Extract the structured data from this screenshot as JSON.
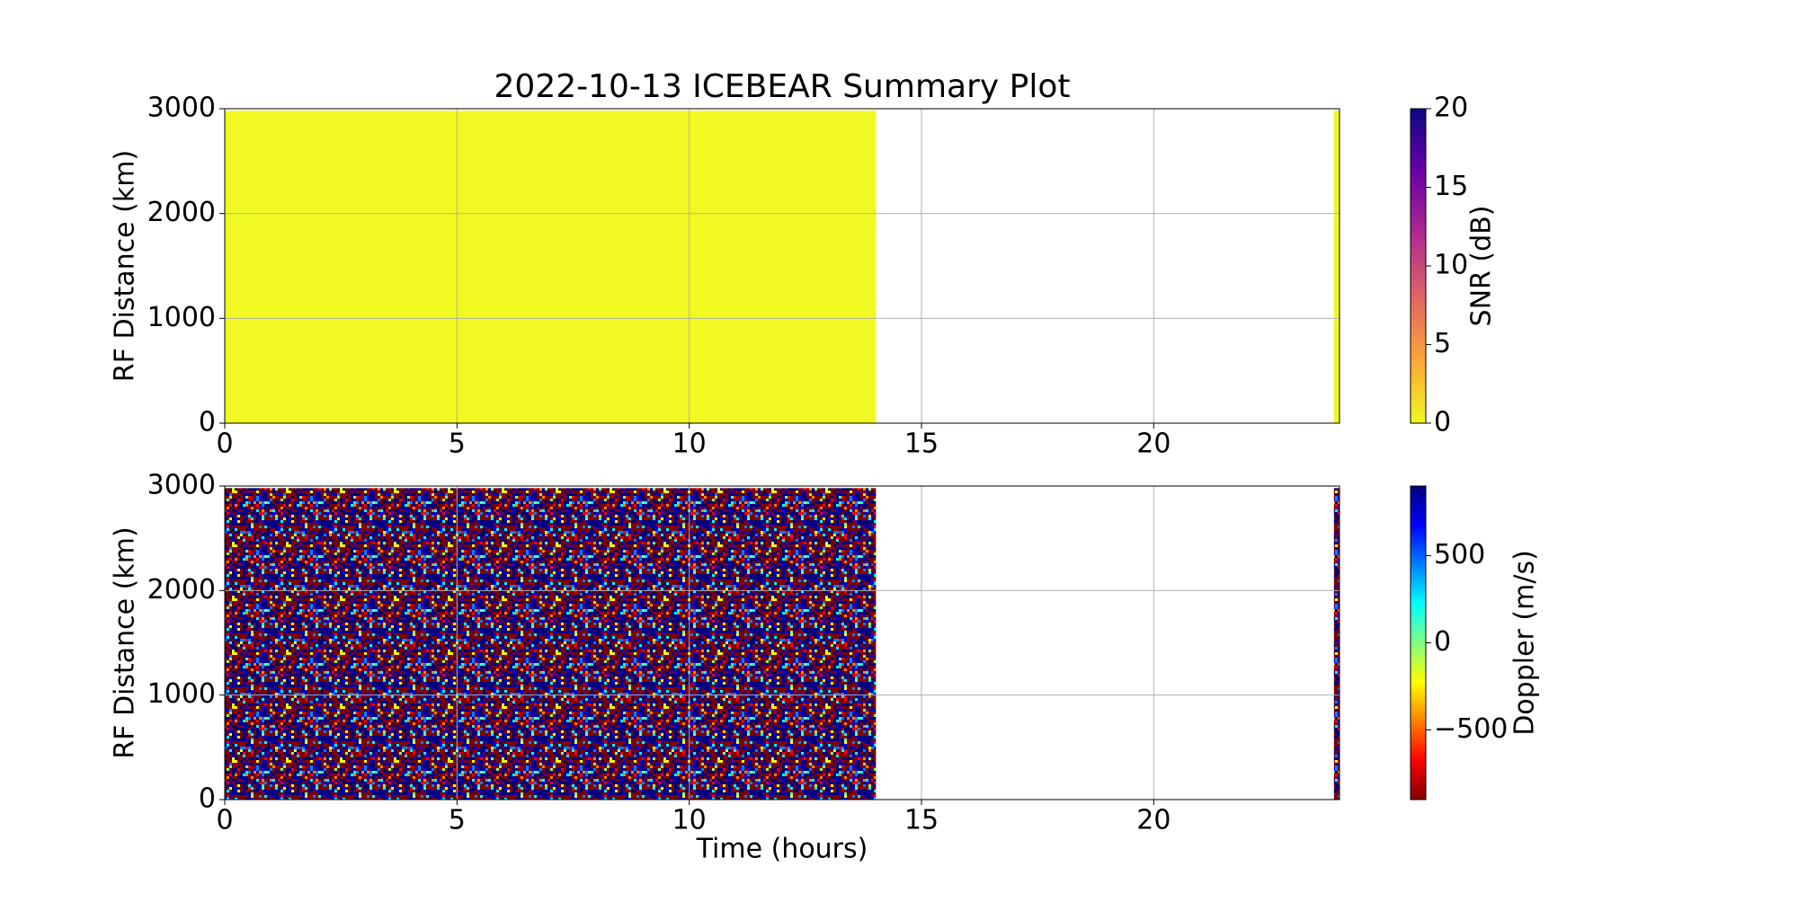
{
  "chart_data": [
    {
      "type": "heatmap",
      "title": "2022-10-13 ICEBEAR Summary Plot",
      "ylabel": "RF Distance (km)",
      "xlim": [
        0,
        24
      ],
      "xticks": [
        0,
        5,
        10,
        15,
        20
      ],
      "ylim": [
        0,
        3000
      ],
      "yticks": [
        0,
        1000,
        2000,
        3000
      ],
      "grid": true,
      "fill": "uniform",
      "value": 0,
      "spans": [
        {
          "x": [
            0,
            14.02
          ],
          "y": [
            0,
            2980
          ]
        },
        {
          "x": [
            23.88,
            24
          ],
          "y": [
            0,
            2980
          ]
        }
      ],
      "colorbar": {
        "label": "SNR (dB)",
        "lim": [
          0,
          20
        ],
        "ticks": [
          0,
          5,
          10,
          15,
          20
        ],
        "colors": [
          "#f0f921",
          "#fca636",
          "#e16462",
          "#b12a90",
          "#6a00a8",
          "#0d0887"
        ]
      }
    },
    {
      "type": "heatmap",
      "ylabel": "RF Distance (km)",
      "xlabel": "Time (hours)",
      "xlim": [
        0,
        24
      ],
      "xticks": [
        0,
        5,
        10,
        15,
        20
      ],
      "ylim": [
        0,
        3000
      ],
      "yticks": [
        0,
        1000,
        2000,
        3000
      ],
      "grid": true,
      "fill": "noise",
      "spans": [
        {
          "x": [
            0,
            14.02
          ],
          "y": [
            0,
            2980
          ]
        },
        {
          "x": [
            23.88,
            24
          ],
          "y": [
            0,
            2980
          ]
        }
      ],
      "colorbar": {
        "label": "Doppler (m/s)",
        "lim": [
          -900,
          900
        ],
        "ticks": [
          {
            "value": -500,
            "label": "−500"
          },
          0,
          500
        ],
        "colors": [
          "#800000",
          "#ff0000",
          "#ff8000",
          "#ffff00",
          "#80ff80",
          "#00ffff",
          "#0080ff",
          "#0000ff",
          "#000080"
        ]
      }
    }
  ]
}
